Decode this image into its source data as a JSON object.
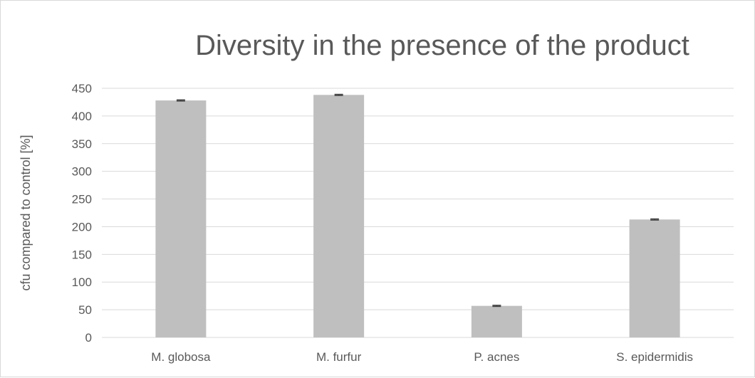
{
  "chart_data": {
    "type": "bar",
    "title": "Diversity in the presence of the product",
    "xlabel": "",
    "ylabel": "cfu compared to control [%]",
    "categories": [
      "M. globosa",
      "M. furfur",
      "P. acnes",
      "S. epidermidis"
    ],
    "values": [
      428,
      438,
      57,
      213
    ],
    "error": [
      1,
      1,
      1,
      1
    ],
    "ylim": [
      0,
      450
    ],
    "yticks": [
      0,
      50,
      100,
      150,
      200,
      250,
      300,
      350,
      400,
      450
    ],
    "grid": true,
    "legend": "none",
    "colors": {
      "bar": "#bfbfbf",
      "gridline": "#d9d9d9",
      "error_bar": "#404040",
      "text": "#595959"
    }
  }
}
